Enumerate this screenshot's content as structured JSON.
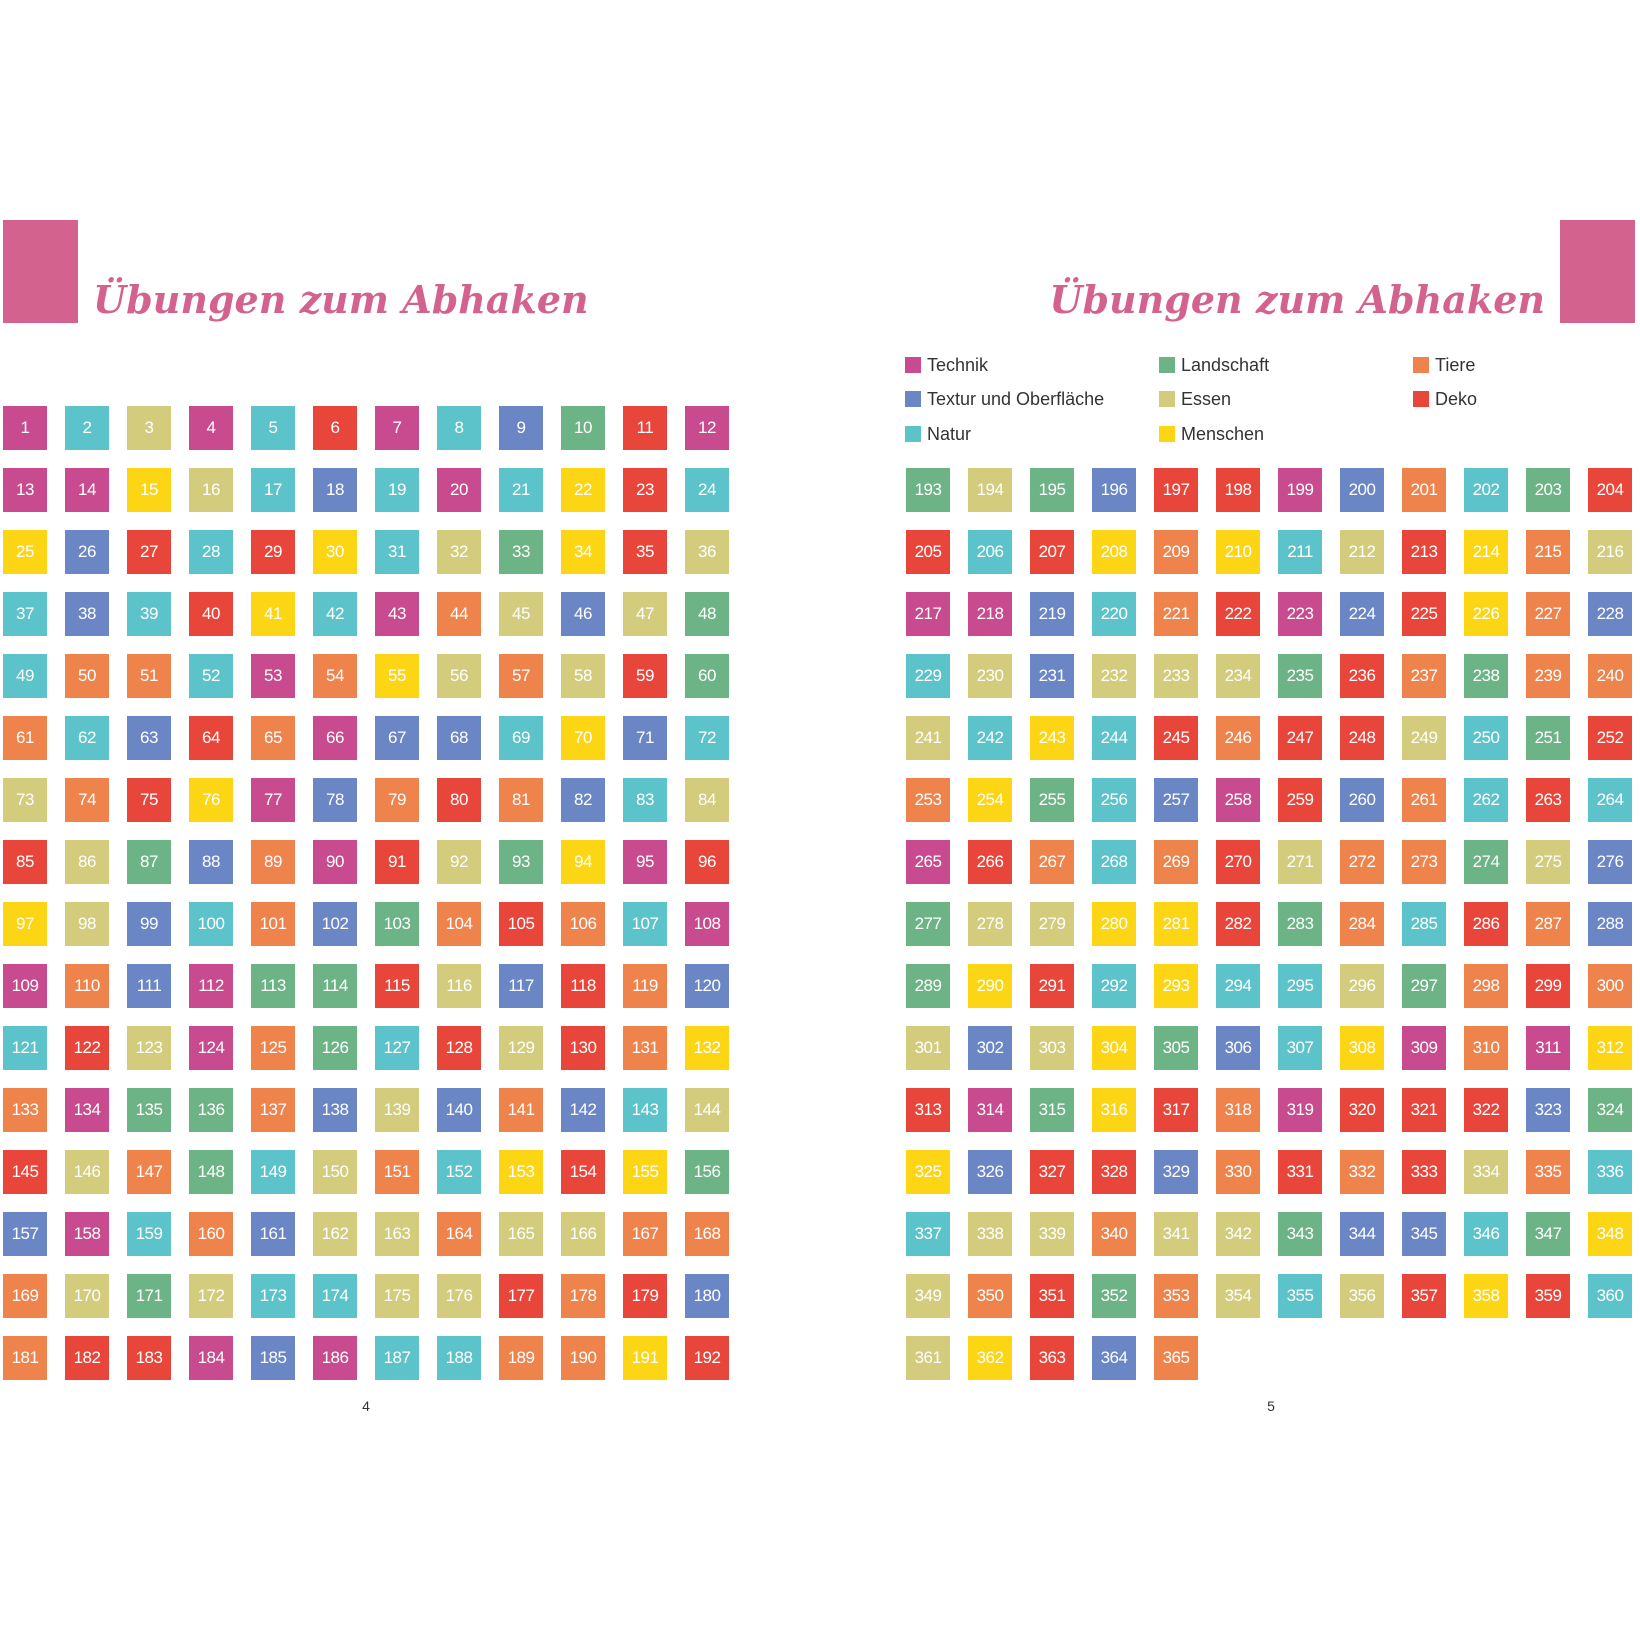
{
  "left_page": {
    "title": "Übungen zum Abhaken",
    "page_number": "4",
    "start": 1,
    "colors": [
      "T",
      "N",
      "E",
      "T",
      "N",
      "D",
      "T",
      "N",
      "X",
      "L",
      "D",
      "T",
      "T",
      "T",
      "M",
      "E",
      "N",
      "X",
      "N",
      "T",
      "N",
      "M",
      "D",
      "N",
      "M",
      "X",
      "D",
      "N",
      "D",
      "M",
      "N",
      "E",
      "L",
      "M",
      "D",
      "E",
      "N",
      "X",
      "N",
      "D",
      "M",
      "N",
      "T",
      "R",
      "E",
      "X",
      "E",
      "L",
      "N",
      "R",
      "R",
      "N",
      "T",
      "R",
      "M",
      "E",
      "R",
      "E",
      "D",
      "L",
      "R",
      "N",
      "X",
      "D",
      "R",
      "T",
      "X",
      "X",
      "N",
      "M",
      "X",
      "N",
      "E",
      "R",
      "D",
      "M",
      "T",
      "X",
      "R",
      "D",
      "R",
      "X",
      "N",
      "E",
      "D",
      "E",
      "L",
      "X",
      "R",
      "T",
      "D",
      "E",
      "L",
      "M",
      "T",
      "D",
      "M",
      "E",
      "X",
      "N",
      "R",
      "X",
      "L",
      "R",
      "D",
      "R",
      "N",
      "T",
      "T",
      "R",
      "X",
      "T",
      "L",
      "L",
      "D",
      "E",
      "X",
      "D",
      "R",
      "X",
      "N",
      "D",
      "E",
      "T",
      "R",
      "L",
      "N",
      "D",
      "E",
      "D",
      "R",
      "M",
      "R",
      "T",
      "L",
      "L",
      "R",
      "X",
      "E",
      "X",
      "R",
      "X",
      "N",
      "E",
      "D",
      "E",
      "R",
      "L",
      "N",
      "E",
      "R",
      "N",
      "M",
      "D",
      "M",
      "L",
      "X",
      "T",
      "N",
      "R",
      "X",
      "E",
      "E",
      "R",
      "E",
      "E",
      "R",
      "R",
      "R",
      "E",
      "L",
      "E",
      "N",
      "N",
      "E",
      "E",
      "D",
      "R",
      "D",
      "X",
      "R",
      "D",
      "D",
      "T",
      "X",
      "T",
      "N",
      "N",
      "R",
      "R",
      "M",
      "D"
    ]
  },
  "right_page": {
    "title": "Übungen zum Abhaken",
    "page_number": "5",
    "start": 193,
    "colors": [
      "L",
      "E",
      "L",
      "X",
      "D",
      "D",
      "T",
      "X",
      "R",
      "N",
      "L",
      "D",
      "D",
      "N",
      "D",
      "M",
      "R",
      "M",
      "N",
      "E",
      "D",
      "M",
      "R",
      "E",
      "T",
      "T",
      "X",
      "N",
      "R",
      "D",
      "T",
      "X",
      "D",
      "M",
      "R",
      "X",
      "N",
      "E",
      "X",
      "E",
      "E",
      "E",
      "L",
      "D",
      "R",
      "L",
      "R",
      "R",
      "E",
      "N",
      "M",
      "N",
      "D",
      "R",
      "D",
      "D",
      "E",
      "N",
      "L",
      "D",
      "R",
      "M",
      "L",
      "N",
      "X",
      "T",
      "D",
      "X",
      "R",
      "N",
      "D",
      "N",
      "T",
      "D",
      "R",
      "N",
      "R",
      "D",
      "E",
      "R",
      "R",
      "L",
      "E",
      "X",
      "L",
      "E",
      "E",
      "M",
      "M",
      "D",
      "L",
      "R",
      "N",
      "D",
      "R",
      "X",
      "L",
      "M",
      "D",
      "N",
      "M",
      "N",
      "N",
      "E",
      "L",
      "R",
      "D",
      "R",
      "E",
      "X",
      "E",
      "M",
      "L",
      "X",
      "N",
      "M",
      "T",
      "R",
      "T",
      "M",
      "D",
      "T",
      "L",
      "M",
      "D",
      "R",
      "T",
      "D",
      "D",
      "D",
      "X",
      "L",
      "M",
      "X",
      "D",
      "D",
      "X",
      "R",
      "D",
      "R",
      "D",
      "E",
      "R",
      "N",
      "N",
      "E",
      "E",
      "R",
      "E",
      "E",
      "L",
      "X",
      "X",
      "N",
      "L",
      "M",
      "E",
      "R",
      "D",
      "L",
      "R",
      "E",
      "N",
      "E",
      "D",
      "M",
      "D",
      "N",
      "E",
      "M",
      "D",
      "X",
      "R"
    ]
  },
  "legend": [
    {
      "key": "T",
      "label": "Technik",
      "color": "#c74b8e"
    },
    {
      "key": "L",
      "label": "Landschaft",
      "color": "#6cb386"
    },
    {
      "key": "R",
      "label": "Tiere",
      "color": "#ef834c"
    },
    {
      "key": "X",
      "label": "Textur und Oberfläche",
      "color": "#6a86c4"
    },
    {
      "key": "E",
      "label": "Essen",
      "color": "#d2cc7c"
    },
    {
      "key": "D",
      "label": "Deko",
      "color": "#e8453b"
    },
    {
      "key": "N",
      "label": "Natur",
      "color": "#5cc3cb"
    },
    {
      "key": "M",
      "label": "Menschen",
      "color": "#fcd614"
    }
  ]
}
